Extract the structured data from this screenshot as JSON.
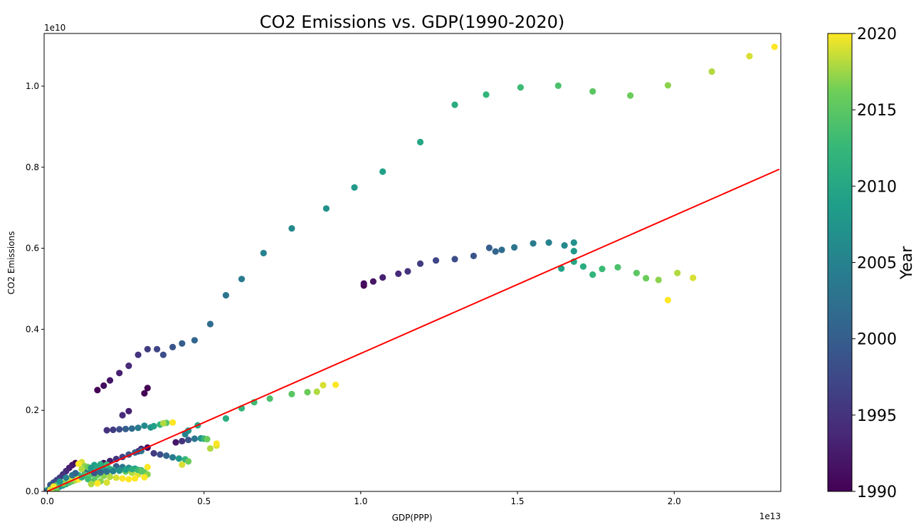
{
  "chart_data": {
    "type": "scatter",
    "title": "CO2 Emissions vs. GDP(1990-2020)",
    "xlabel": "GDP(PPP)",
    "ylabel": "CO2 Emissions",
    "x_offset_label": "1e13",
    "y_offset_label": "1e10",
    "xlim": [
      -0.01,
      2.34
    ],
    "ylim": [
      0,
      1.13
    ],
    "x_ticks": [
      0.0,
      0.5,
      1.0,
      1.5,
      2.0
    ],
    "x_tick_labels": [
      "0.0",
      "0.5",
      "1.0",
      "1.5",
      "2.0"
    ],
    "y_ticks": [
      0.0,
      0.2,
      0.4,
      0.6,
      0.8,
      1.0
    ],
    "y_tick_labels": [
      "0.0",
      "0.2",
      "0.4",
      "0.6",
      "0.8",
      "1.0"
    ],
    "grid": false,
    "colorbar": {
      "label": "Year",
      "colormap": "viridis",
      "min": 1990,
      "max": 2020,
      "ticks": [
        1990,
        1995,
        2000,
        2005,
        2010,
        2015,
        2020
      ],
      "tick_labels": [
        "1990",
        "1995",
        "2000",
        "2005",
        "2010",
        "2015",
        "2020"
      ]
    },
    "regression_line": {
      "color": "#ff0000",
      "x": [
        0.0,
        2.34
      ],
      "y": [
        0.0,
        0.795
      ]
    },
    "series": [
      {
        "points": [
          [
            1.01,
            0.508,
            1990
          ],
          [
            1.01,
            0.513,
            1991
          ],
          [
            1.04,
            0.518,
            1992
          ],
          [
            1.07,
            0.528,
            1993
          ],
          [
            1.12,
            0.537,
            1994
          ],
          [
            1.15,
            0.543,
            1995
          ],
          [
            1.19,
            0.562,
            1996
          ],
          [
            1.24,
            0.57,
            1997
          ],
          [
            1.3,
            0.573,
            1998
          ],
          [
            1.36,
            0.581,
            1999
          ],
          [
            1.41,
            0.601,
            2000
          ],
          [
            1.43,
            0.592,
            2001
          ],
          [
            1.45,
            0.596,
            2002
          ],
          [
            1.49,
            0.602,
            2003
          ],
          [
            1.55,
            0.612,
            2004
          ],
          [
            1.6,
            0.614,
            2005
          ],
          [
            1.65,
            0.607,
            2006
          ],
          [
            1.68,
            0.614,
            2007
          ],
          [
            1.68,
            0.593,
            2008
          ],
          [
            1.64,
            0.55,
            2009
          ],
          [
            1.68,
            0.567,
            2010
          ],
          [
            1.71,
            0.555,
            2011
          ],
          [
            1.74,
            0.535,
            2012
          ],
          [
            1.77,
            0.549,
            2013
          ],
          [
            1.82,
            0.553,
            2014
          ],
          [
            1.88,
            0.539,
            2015
          ],
          [
            1.91,
            0.526,
            2016
          ],
          [
            1.95,
            0.522,
            2017
          ],
          [
            2.01,
            0.539,
            2018
          ],
          [
            2.06,
            0.527,
            2019
          ],
          [
            1.98,
            0.472,
            2020
          ]
        ]
      },
      {
        "points": [
          [
            0.16,
            0.25,
            1990
          ],
          [
            0.18,
            0.261,
            1991
          ],
          [
            0.2,
            0.274,
            1992
          ],
          [
            0.23,
            0.292,
            1993
          ],
          [
            0.26,
            0.31,
            1994
          ],
          [
            0.29,
            0.337,
            1995
          ],
          [
            0.32,
            0.351,
            1996
          ],
          [
            0.35,
            0.351,
            1997
          ],
          [
            0.37,
            0.337,
            1998
          ],
          [
            0.4,
            0.356,
            1999
          ],
          [
            0.43,
            0.365,
            2000
          ],
          [
            0.47,
            0.373,
            2001
          ],
          [
            0.52,
            0.413,
            2002
          ],
          [
            0.57,
            0.484,
            2003
          ],
          [
            0.62,
            0.524,
            2004
          ],
          [
            0.69,
            0.588,
            2005
          ],
          [
            0.78,
            0.649,
            2006
          ],
          [
            0.89,
            0.698,
            2007
          ],
          [
            0.98,
            0.75,
            2008
          ],
          [
            1.07,
            0.789,
            2009
          ],
          [
            1.19,
            0.862,
            2010
          ],
          [
            1.3,
            0.954,
            2011
          ],
          [
            1.4,
            0.979,
            2012
          ],
          [
            1.51,
            0.997,
            2013
          ],
          [
            1.63,
            1.001,
            2014
          ],
          [
            1.74,
            0.987,
            2015
          ],
          [
            1.86,
            0.977,
            2016
          ],
          [
            1.98,
            1.002,
            2017
          ],
          [
            2.12,
            1.036,
            2018
          ],
          [
            2.24,
            1.074,
            2019
          ],
          [
            2.32,
            1.097,
            2020
          ]
        ]
      },
      {
        "points": [
          [
            0.31,
            0.242,
            1990
          ],
          [
            0.32,
            0.255,
            1990
          ],
          [
            0.26,
            0.198,
            1993
          ],
          [
            0.24,
            0.188,
            1994
          ],
          [
            0.52,
            0.106,
            2018
          ],
          [
            0.54,
            0.113,
            2019
          ],
          [
            0.54,
            0.118,
            2020
          ],
          [
            0.57,
            0.18,
            2011
          ],
          [
            0.62,
            0.205,
            2012
          ],
          [
            0.66,
            0.22,
            2013
          ],
          [
            0.71,
            0.229,
            2014
          ],
          [
            0.78,
            0.24,
            2015
          ],
          [
            0.83,
            0.245,
            2016
          ],
          [
            0.86,
            0.246,
            2018
          ],
          [
            0.88,
            0.262,
            2019
          ],
          [
            0.92,
            0.263,
            2020
          ],
          [
            0.19,
            0.151,
            1995
          ],
          [
            0.21,
            0.152,
            1996
          ],
          [
            0.23,
            0.153,
            1998
          ],
          [
            0.25,
            0.154,
            2000
          ],
          [
            0.27,
            0.155,
            2002
          ],
          [
            0.29,
            0.157,
            2004
          ],
          [
            0.31,
            0.162,
            2006
          ],
          [
            0.33,
            0.158,
            2007
          ],
          [
            0.34,
            0.161,
            2009
          ],
          [
            0.36,
            0.165,
            2012
          ],
          [
            0.38,
            0.169,
            2015
          ],
          [
            0.4,
            0.17,
            2020
          ],
          [
            0.37,
            0.168,
            2018
          ],
          [
            0.41,
            0.121,
            1992
          ],
          [
            0.43,
            0.124,
            1995
          ],
          [
            0.45,
            0.127,
            1999
          ],
          [
            0.47,
            0.13,
            2003
          ],
          [
            0.49,
            0.131,
            2007
          ],
          [
            0.5,
            0.13,
            2012
          ],
          [
            0.51,
            0.129,
            2016
          ],
          [
            0.48,
            0.163,
            2010
          ],
          [
            0.45,
            0.15,
            2008
          ],
          [
            0.44,
            0.141,
            2005
          ],
          [
            0.32,
            0.108,
            1991
          ],
          [
            0.3,
            0.105,
            1993
          ],
          [
            0.29,
            0.099,
            1994
          ],
          [
            0.34,
            0.094,
            1996
          ],
          [
            0.36,
            0.091,
            1998
          ],
          [
            0.38,
            0.088,
            2001
          ],
          [
            0.4,
            0.084,
            2004
          ],
          [
            0.42,
            0.081,
            2008
          ],
          [
            0.44,
            0.079,
            2012
          ],
          [
            0.45,
            0.074,
            2016
          ],
          [
            0.43,
            0.066,
            2019
          ],
          [
            0.18,
            0.07,
            1991
          ],
          [
            0.2,
            0.075,
            1993
          ],
          [
            0.22,
            0.08,
            1995
          ],
          [
            0.24,
            0.085,
            1997
          ],
          [
            0.26,
            0.091,
            1999
          ],
          [
            0.28,
            0.096,
            2001
          ],
          [
            0.3,
            0.1,
            2003
          ],
          [
            0.22,
            0.062,
            2000
          ],
          [
            0.24,
            0.06,
            2003
          ],
          [
            0.26,
            0.058,
            2006
          ],
          [
            0.28,
            0.056,
            2009
          ],
          [
            0.3,
            0.052,
            2012
          ],
          [
            0.31,
            0.047,
            2015
          ],
          [
            0.32,
            0.042,
            2017
          ],
          [
            0.31,
            0.035,
            2020
          ],
          [
            0.12,
            0.048,
            2002
          ],
          [
            0.14,
            0.05,
            2004
          ],
          [
            0.16,
            0.052,
            2006
          ],
          [
            0.18,
            0.054,
            2008
          ],
          [
            0.2,
            0.055,
            2010
          ],
          [
            0.21,
            0.053,
            2012
          ],
          [
            0.23,
            0.051,
            2014
          ],
          [
            0.25,
            0.049,
            2016
          ],
          [
            0.27,
            0.046,
            2018
          ],
          [
            0.29,
            0.042,
            2019
          ],
          [
            0.1,
            0.04,
            2012
          ],
          [
            0.12,
            0.041,
            2014
          ],
          [
            0.14,
            0.042,
            2015
          ],
          [
            0.16,
            0.04,
            2016
          ],
          [
            0.18,
            0.038,
            2017
          ],
          [
            0.2,
            0.036,
            2018
          ],
          [
            0.22,
            0.034,
            2019
          ],
          [
            0.24,
            0.032,
            2020
          ],
          [
            0.26,
            0.03,
            2020
          ],
          [
            0.28,
            0.032,
            2020
          ],
          [
            0.09,
            0.07,
            1990
          ],
          [
            0.08,
            0.065,
            1992
          ],
          [
            0.07,
            0.058,
            1993
          ],
          [
            0.06,
            0.05,
            1994
          ],
          [
            0.05,
            0.042,
            1995
          ],
          [
            0.04,
            0.034,
            1996
          ],
          [
            0.03,
            0.028,
            1997
          ],
          [
            0.02,
            0.022,
            1998
          ],
          [
            0.01,
            0.016,
            1999
          ],
          [
            0.01,
            0.01,
            2000
          ],
          [
            0.11,
            0.072,
            2019
          ],
          [
            0.1,
            0.068,
            2020
          ],
          [
            0.12,
            0.062,
            2017
          ],
          [
            0.13,
            0.06,
            2016
          ],
          [
            0.11,
            0.055,
            2018
          ],
          [
            0.15,
            0.065,
            2009
          ],
          [
            0.17,
            0.067,
            2011
          ],
          [
            0.19,
            0.066,
            2013
          ],
          [
            0.16,
            0.06,
            2010
          ],
          [
            0.14,
            0.058,
            2008
          ],
          [
            0.02,
            0.005,
            2001
          ],
          [
            0.03,
            0.008,
            2003
          ],
          [
            0.04,
            0.012,
            2006
          ],
          [
            0.05,
            0.015,
            2009
          ],
          [
            0.06,
            0.018,
            2012
          ],
          [
            0.07,
            0.022,
            2014
          ],
          [
            0.08,
            0.025,
            2016
          ],
          [
            0.09,
            0.028,
            2018
          ],
          [
            0.1,
            0.03,
            2020
          ],
          [
            0.0,
            0.003,
            2010
          ],
          [
            0.03,
            0.015,
            2015
          ],
          [
            0.05,
            0.02,
            2017
          ],
          [
            0.07,
            0.03,
            2019
          ],
          [
            0.02,
            0.012,
            2020
          ],
          [
            0.04,
            0.024,
            2008
          ],
          [
            0.06,
            0.034,
            2005
          ],
          [
            0.08,
            0.04,
            2003
          ],
          [
            0.09,
            0.045,
            2001
          ],
          [
            0.11,
            0.035,
            2011
          ],
          [
            0.13,
            0.03,
            2013
          ],
          [
            0.15,
            0.028,
            2015
          ],
          [
            0.17,
            0.025,
            2017
          ],
          [
            0.19,
            0.022,
            2019
          ],
          [
            0.16,
            0.02,
            2020
          ],
          [
            0.14,
            0.018,
            2018
          ],
          [
            0.0,
            0.0,
            2000
          ],
          [
            0.01,
            0.002,
            2005
          ],
          [
            0.02,
            0.001,
            2012
          ],
          [
            0.03,
            0.002,
            2016
          ],
          [
            0.01,
            0.004,
            2019
          ],
          [
            0.15,
            0.045,
            1999
          ],
          [
            0.17,
            0.047,
            2001
          ],
          [
            0.19,
            0.049,
            2003
          ],
          [
            0.21,
            0.05,
            2005
          ],
          [
            0.23,
            0.052,
            2007
          ],
          [
            0.25,
            0.054,
            2009
          ],
          [
            0.27,
            0.055,
            2011
          ],
          [
            0.29,
            0.053,
            2013
          ],
          [
            0.3,
            0.05,
            2015
          ],
          [
            0.32,
            0.06,
            2020
          ]
        ]
      }
    ]
  }
}
